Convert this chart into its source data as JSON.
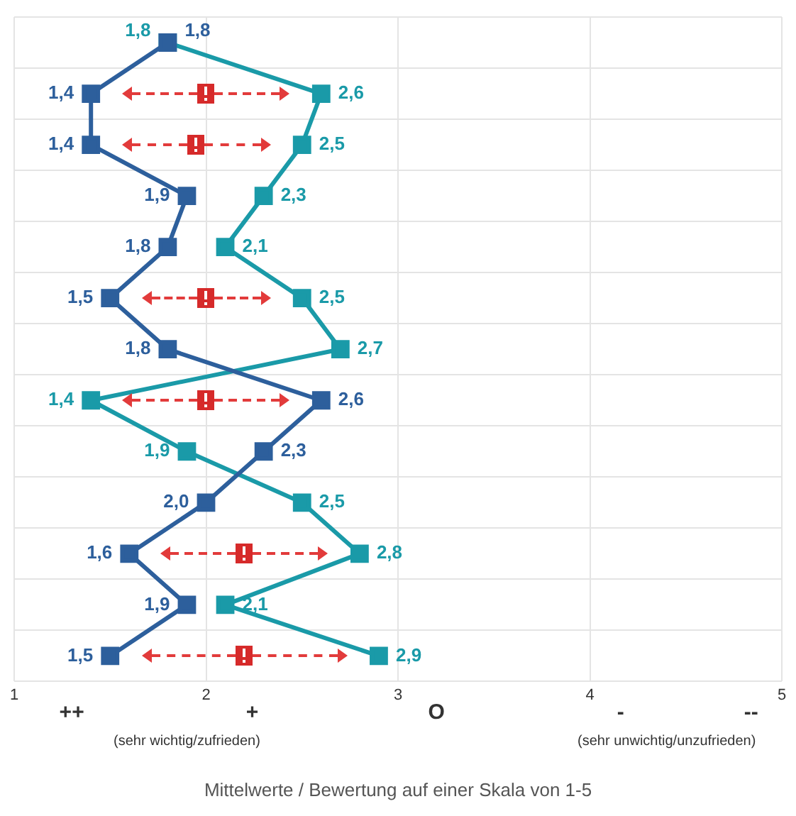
{
  "chart_data": {
    "type": "line",
    "orientation": "horizontal",
    "categories": [
      null,
      null,
      null,
      null,
      null,
      null,
      null,
      null,
      null,
      null,
      null,
      null,
      null
    ],
    "series": [
      {
        "color": "#2d5f9c",
        "values": [
          1.8,
          1.4,
          1.4,
          1.9,
          1.8,
          1.5,
          1.8,
          2.6,
          2.3,
          2.0,
          1.6,
          1.9,
          1.5
        ],
        "value_labels": [
          "1,8",
          "1,4",
          "1,4",
          "1,9",
          "1,8",
          "1,5",
          "1,8",
          "2,6",
          "2,3",
          "2,0",
          "1,6",
          "1,9",
          "1,5"
        ]
      },
      {
        "color": "#1a9aa8",
        "values": [
          1.8,
          2.6,
          2.5,
          2.3,
          2.1,
          2.5,
          2.7,
          1.4,
          1.9,
          2.5,
          2.8,
          2.1,
          2.9
        ],
        "value_labels": [
          "1,8",
          "2,6",
          "2,5",
          "2,3",
          "2,1",
          "2,5",
          "2,7",
          "1,4",
          "1,9",
          "2,5",
          "2,8",
          "2,1",
          "2,9"
        ]
      }
    ],
    "xlim": [
      1,
      5
    ],
    "xticks": [
      1,
      2,
      3,
      4,
      5
    ],
    "xlabel": "Mittelwerte / Bewertung auf einer Skala von 1-5",
    "annotations": [
      "++",
      "+",
      "O",
      "-",
      "--",
      "(sehr wichtig/zufrieden)",
      "(sehr unwichtig/unzufrieden)"
    ],
    "marker": "square",
    "grid": true,
    "legend": false
  }
}
